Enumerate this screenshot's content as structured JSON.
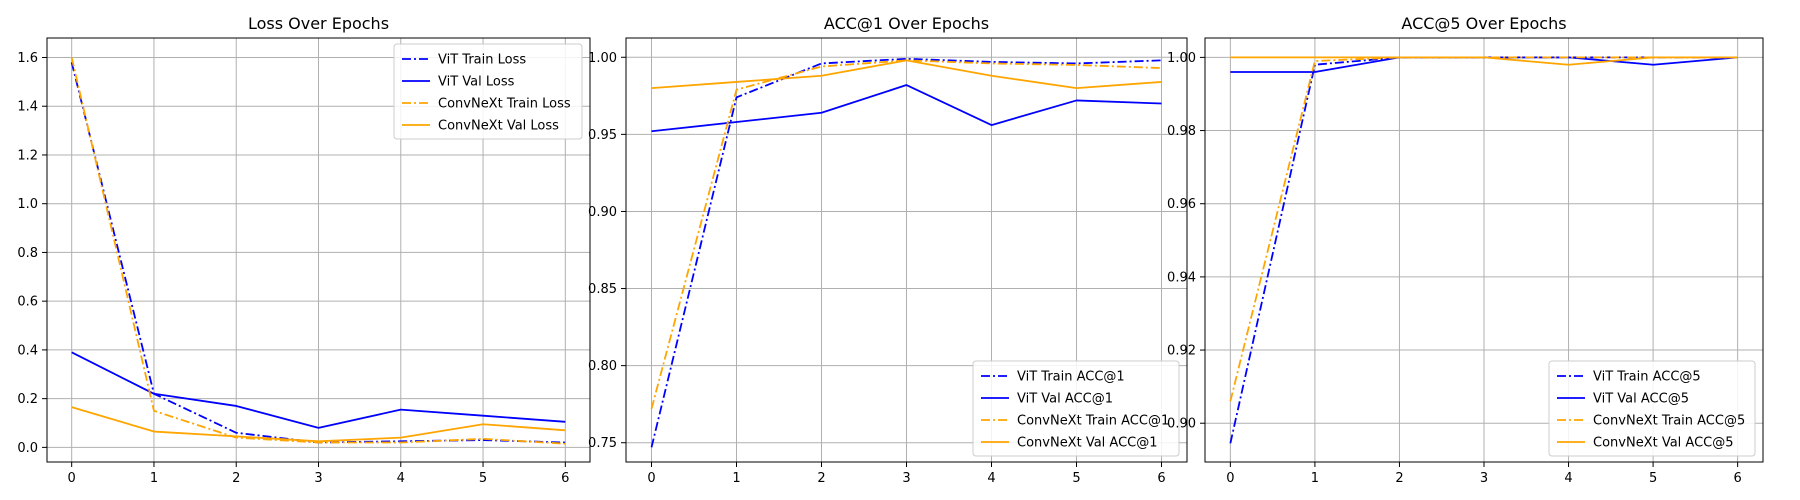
{
  "chart_data": [
    {
      "type": "line",
      "title": "Loss Over Epochs",
      "xlabel": "",
      "ylabel": "",
      "x": [
        0,
        1,
        2,
        3,
        4,
        5,
        6
      ],
      "xlim": [
        -0.3,
        6.3
      ],
      "ylim": [
        -0.06,
        1.68
      ],
      "yticks": [
        0.0,
        0.2,
        0.4,
        0.6,
        0.8,
        1.0,
        1.2,
        1.4,
        1.6
      ],
      "ytick_labels": [
        "0.0",
        "0.2",
        "0.4",
        "0.6",
        "0.8",
        "1.0",
        "1.2",
        "1.4",
        "1.6"
      ],
      "xtick_labels": [
        "0",
        "1",
        "2",
        "3",
        "4",
        "5",
        "6"
      ],
      "grid": true,
      "legend_position": "top-right",
      "series": [
        {
          "name": "ViT Train Loss",
          "values": [
            1.58,
            0.22,
            0.06,
            0.02,
            0.025,
            0.03,
            0.02
          ],
          "color": "#0000ff",
          "style": "dashdot"
        },
        {
          "name": "ViT Val Loss",
          "values": [
            0.39,
            0.22,
            0.17,
            0.08,
            0.155,
            0.13,
            0.105
          ],
          "color": "#0000ff",
          "style": "solid"
        },
        {
          "name": "ConvNeXt Train Loss",
          "values": [
            1.6,
            0.15,
            0.04,
            0.02,
            0.02,
            0.035,
            0.015
          ],
          "color": "#ffa500",
          "style": "dashdot"
        },
        {
          "name": "ConvNeXt Val Loss",
          "values": [
            0.165,
            0.065,
            0.045,
            0.025,
            0.04,
            0.095,
            0.07
          ],
          "color": "#ffa500",
          "style": "solid"
        }
      ]
    },
    {
      "type": "line",
      "title": "ACC@1 Over Epochs",
      "xlabel": "",
      "ylabel": "",
      "x": [
        0,
        1,
        2,
        3,
        4,
        5,
        6
      ],
      "xlim": [
        -0.3,
        6.3
      ],
      "ylim": [
        0.7375,
        1.0125
      ],
      "yticks": [
        0.75,
        0.8,
        0.85,
        0.9,
        0.95,
        1.0
      ],
      "ytick_labels": [
        "0.75",
        "0.80",
        "0.85",
        "0.90",
        "0.95",
        "1.00"
      ],
      "xtick_labels": [
        "0",
        "1",
        "2",
        "3",
        "4",
        "5",
        "6"
      ],
      "grid": true,
      "legend_position": "bottom-right",
      "series": [
        {
          "name": "ViT Train ACC@1",
          "values": [
            0.747,
            0.974,
            0.996,
            0.999,
            0.997,
            0.996,
            0.998
          ],
          "color": "#0000ff",
          "style": "dashdot"
        },
        {
          "name": "ViT Val ACC@1",
          "values": [
            0.952,
            0.958,
            0.964,
            0.982,
            0.956,
            0.972,
            0.97
          ],
          "color": "#0000ff",
          "style": "solid"
        },
        {
          "name": "ConvNeXt Train ACC@1",
          "values": [
            0.772,
            0.979,
            0.994,
            0.998,
            0.996,
            0.995,
            0.993
          ],
          "color": "#ffa500",
          "style": "dashdot"
        },
        {
          "name": "ConvNeXt Val ACC@1",
          "values": [
            0.98,
            0.984,
            0.988,
            0.998,
            0.988,
            0.98,
            0.984
          ],
          "color": "#ffa500",
          "style": "solid"
        }
      ]
    },
    {
      "type": "line",
      "title": "ACC@5 Over Epochs",
      "xlabel": "",
      "ylabel": "",
      "x": [
        0,
        1,
        2,
        3,
        4,
        5,
        6
      ],
      "xlim": [
        -0.3,
        6.3
      ],
      "ylim": [
        0.8894,
        1.0053
      ],
      "yticks": [
        0.9,
        0.92,
        0.94,
        0.96,
        0.98,
        1.0
      ],
      "ytick_labels": [
        "0.90",
        "0.92",
        "0.94",
        "0.96",
        "0.98",
        "1.00"
      ],
      "xtick_labels": [
        "0",
        "1",
        "2",
        "3",
        "4",
        "5",
        "6"
      ],
      "grid": true,
      "legend_position": "bottom-right",
      "series": [
        {
          "name": "ViT Train ACC@5",
          "values": [
            0.8945,
            0.998,
            1.0,
            1.0,
            1.0,
            1.0,
            1.0
          ],
          "color": "#0000ff",
          "style": "dashdot"
        },
        {
          "name": "ViT Val ACC@5",
          "values": [
            0.996,
            0.996,
            1.0,
            1.0,
            1.0,
            0.998,
            1.0
          ],
          "color": "#0000ff",
          "style": "solid"
        },
        {
          "name": "ConvNeXt Train ACC@5",
          "values": [
            0.906,
            0.999,
            1.0,
            1.0,
            1.0,
            1.0,
            1.0
          ],
          "color": "#ffa500",
          "style": "dashdot"
        },
        {
          "name": "ConvNeXt Val ACC@5",
          "values": [
            1.0,
            1.0,
            1.0,
            1.0,
            0.998,
            1.0,
            1.0
          ],
          "color": "#ffa500",
          "style": "solid"
        }
      ]
    }
  ]
}
